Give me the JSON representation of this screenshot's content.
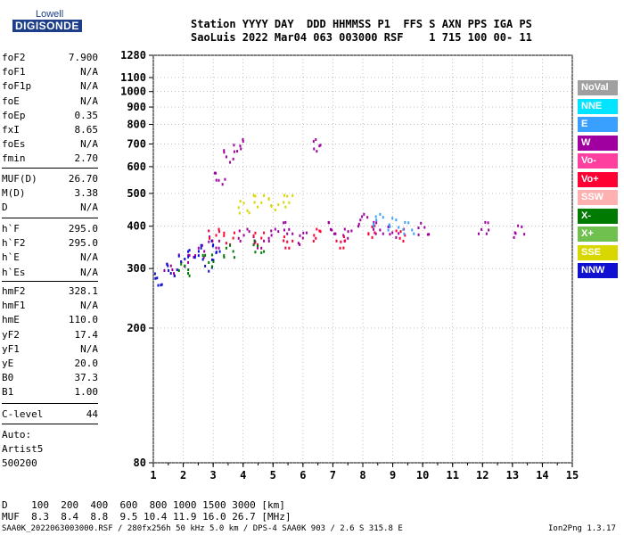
{
  "logo": {
    "top": "Lowell",
    "main": "DIGISONDE"
  },
  "header": {
    "line1": "Station YYYY DAY  DDD HHMMSS P1  FFS S AXN PPS IGA PS",
    "line2": "SaoLuis 2022 Mar04 063 003000 RSF    1 715 100 00- 11"
  },
  "params_a": [
    {
      "label": "foF2",
      "value": "7.900"
    },
    {
      "label": "foF1",
      "value": "N/A"
    },
    {
      "label": "foF1p",
      "value": "N/A"
    },
    {
      "label": "foE",
      "value": "N/A"
    },
    {
      "label": "foEp",
      "value": "0.35"
    },
    {
      "label": "fxI",
      "value": "8.65"
    },
    {
      "label": "foEs",
      "value": "N/A"
    },
    {
      "label": "fmin",
      "value": "2.70"
    }
  ],
  "params_b": [
    {
      "label": "MUF(D)",
      "value": "26.70"
    },
    {
      "label": "M(D)",
      "value": "3.38"
    },
    {
      "label": "D",
      "value": "N/A"
    }
  ],
  "params_c": [
    {
      "label": "h`F",
      "value": "295.0"
    },
    {
      "label": "h`F2",
      "value": "295.0"
    },
    {
      "label": "h`E",
      "value": "N/A"
    },
    {
      "label": "h`Es",
      "value": "N/A"
    }
  ],
  "params_d": [
    {
      "label": "hmF2",
      "value": "328.1"
    },
    {
      "label": "hmF1",
      "value": "N/A"
    },
    {
      "label": "hmE",
      "value": "110.0"
    },
    {
      "label": "yF2",
      "value": "17.4"
    },
    {
      "label": "yF1",
      "value": "N/A"
    },
    {
      "label": "yE",
      "value": "20.0"
    },
    {
      "label": "B0",
      "value": "37.3"
    },
    {
      "label": "B1",
      "value": "1.00"
    }
  ],
  "clevel": {
    "label": "C-level",
    "value": "44"
  },
  "auto": [
    "Auto:",
    "Artist5",
    "500200"
  ],
  "legend": [
    {
      "label": "NoVal",
      "color": "#a0a0a0"
    },
    {
      "label": "NNE",
      "color": "#00e5ff"
    },
    {
      "label": "E",
      "color": "#3aa0ff"
    },
    {
      "label": "W",
      "color": "#a000a0"
    },
    {
      "label": "Vo-",
      "color": "#ff3fa0"
    },
    {
      "label": "Vo+",
      "color": "#ff0033"
    },
    {
      "label": "SSW",
      "color": "#ffb0b0"
    },
    {
      "label": "X-",
      "color": "#007a00"
    },
    {
      "label": "X+",
      "color": "#70c050"
    },
    {
      "label": "SSE",
      "color": "#d8d800"
    },
    {
      "label": "NNW",
      "color": "#1010d0"
    }
  ],
  "muf_table": {
    "line1": "D    100  200  400  600  800 1000 1500 3000 [km]",
    "line2": "MUF  8.3  8.4  8.8  9.5 10.4 11.9 16.0 26.7 [MHz]"
  },
  "footer": {
    "left": "SAA0K_2022063003000.RSF / 280fx256h 50 kHz 5.0 km / DPS-4 SAA0K 903 / 2.6 S 315.8 E",
    "right": "Ion2Png 1.3.17"
  },
  "chart_data": {
    "type": "scatter",
    "title": "",
    "xlabel": "",
    "ylabel": "",
    "xlim": [
      1,
      15
    ],
    "ylim": [
      80,
      1280
    ],
    "yscale": "log",
    "x_ticks": [
      "1",
      "2",
      "3",
      "4",
      "5",
      "6",
      "7",
      "8",
      "9",
      "10",
      "11",
      "12",
      "13",
      "14",
      "15"
    ],
    "y_ticks": [
      "80",
      "200",
      "300",
      "400",
      "500",
      "600",
      "700",
      "800",
      "900",
      "1000",
      "1100",
      "1280"
    ],
    "grid": true,
    "series": [
      {
        "name": "W",
        "color": "#a000a0",
        "points": [
          [
            1.5,
            300
          ],
          [
            2.0,
            320
          ],
          [
            2.5,
            340
          ],
          [
            3.0,
            360
          ],
          [
            3.2,
            560
          ],
          [
            3.5,
            650
          ],
          [
            3.8,
            700
          ],
          [
            4.0,
            380
          ],
          [
            4.5,
            360
          ],
          [
            5.0,
            380
          ],
          [
            5.5,
            400
          ],
          [
            6.0,
            370
          ],
          [
            6.5,
            700
          ],
          [
            7.0,
            400
          ],
          [
            7.5,
            380
          ],
          [
            8.0,
            420
          ],
          [
            8.5,
            400
          ],
          [
            9.0,
            390
          ],
          [
            10.0,
            395
          ],
          [
            12.0,
            400
          ],
          [
            13.2,
            390
          ]
        ]
      },
      {
        "name": "Vo+",
        "color": "#ff0033",
        "points": [
          [
            3.0,
            380
          ],
          [
            3.5,
            370
          ],
          [
            4.5,
            370
          ],
          [
            5.5,
            360
          ],
          [
            6.5,
            380
          ],
          [
            7.2,
            360
          ],
          [
            8.2,
            390
          ],
          [
            9.2,
            380
          ]
        ]
      },
      {
        "name": "NNW",
        "color": "#1010d0",
        "points": [
          [
            1.2,
            280
          ],
          [
            1.6,
            300
          ],
          [
            2.0,
            330
          ],
          [
            2.4,
            340
          ],
          [
            2.8,
            310
          ],
          [
            3.1,
            350
          ]
        ]
      },
      {
        "name": "X-",
        "color": "#007a00",
        "points": [
          [
            2.0,
            300
          ],
          [
            2.8,
            320
          ],
          [
            3.5,
            340
          ],
          [
            4.5,
            350
          ]
        ]
      },
      {
        "name": "SSE",
        "color": "#d8d800",
        "points": [
          [
            4.0,
            460
          ],
          [
            4.5,
            480
          ],
          [
            5.0,
            470
          ],
          [
            5.5,
            480
          ]
        ]
      },
      {
        "name": "E",
        "color": "#3aa0ff",
        "points": [
          [
            8.5,
            420
          ],
          [
            9.0,
            410
          ],
          [
            9.5,
            400
          ]
        ]
      }
    ]
  }
}
